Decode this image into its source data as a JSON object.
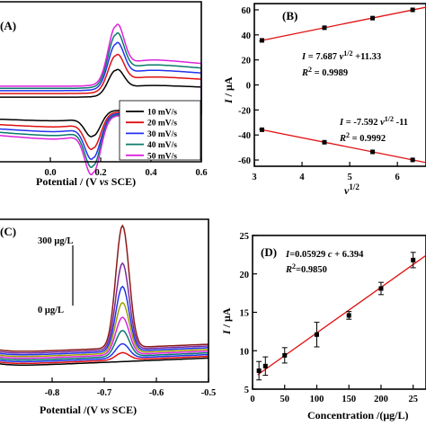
{
  "chart_data": [
    {
      "panel": "(A)",
      "type": "line",
      "xlabel": "Potential / (V vs SCE)",
      "xticks": [
        "0.0",
        "0.2",
        "0.4",
        "0.6"
      ],
      "xlim": [
        -0.2,
        0.6
      ],
      "legend": {
        "placement": "bottom-right"
      },
      "series": [
        {
          "name": "10 mV/s",
          "color": "#000000",
          "peak": 0.8
        },
        {
          "name": "20 mV/s",
          "color": "#e01010",
          "peak": 1.13
        },
        {
          "name": "30 mV/s",
          "color": "#2233ee",
          "peak": 1.39
        },
        {
          "name": "40 mV/s",
          "color": "#0a7a6a",
          "peak": 1.6
        },
        {
          "name": "50 mV/s",
          "color": "#dd22dd",
          "peak": 1.79
        }
      ],
      "anodic_peak_potential": 0.26,
      "cathodic_peak_potential": 0.17
    },
    {
      "panel": "(B)",
      "type": "scatter",
      "xlabel": "v1/2",
      "ylabel": "I / μA",
      "xlim": [
        3.0,
        6.6
      ],
      "ylim": [
        -65,
        65
      ],
      "xticks": [
        "3",
        "4",
        "5",
        "6"
      ],
      "yticks": [
        "60",
        "40",
        "20",
        "0",
        "-20",
        "-40",
        "-60"
      ],
      "series": [
        {
          "x": [
            3.16,
            4.47,
            5.48,
            6.32
          ],
          "y": [
            35.6,
            45.7,
            53.4,
            60.0
          ],
          "color": "#000000",
          "fit_color": "#e01010"
        },
        {
          "x": [
            3.16,
            4.47,
            5.48,
            6.32
          ],
          "y": [
            -35.8,
            -45.8,
            -53.5,
            -59.9
          ],
          "color": "#000000",
          "fit_color": "#e01010"
        }
      ],
      "eq_top": {
        "line1": "I = 7.687 v1/2 +11.33",
        "line2": "R2 = 0.9989"
      },
      "eq_bottom": {
        "line1": "I = -7.592 v1/2 -11",
        "line2": "R2 = 0.9992"
      }
    },
    {
      "panel": "(C)",
      "type": "line",
      "xlabel": "Potential /(V vs SCE)",
      "xticks": [
        "-0.8",
        "-0.7",
        "-0.6",
        "-0.5"
      ],
      "xlim": [
        -0.9,
        -0.5
      ],
      "peak_potential": -0.665,
      "label_top": "300 μg/L",
      "label_bottom": "0 μg/L",
      "series": [
        {
          "color": "#000000",
          "peak": 0.0
        },
        {
          "color": "#e01010",
          "peak": 0.05
        },
        {
          "color": "#2233ee",
          "peak": 0.1
        },
        {
          "color": "#0a7a6a",
          "peak": 0.18
        },
        {
          "color": "#dd22dd",
          "peak": 0.26
        },
        {
          "color": "#a0a000",
          "peak": 0.35
        },
        {
          "color": "#2233ee",
          "peak": 0.45
        },
        {
          "color": "#7a2a9a",
          "peak": 0.6
        },
        {
          "color": "#8b1a1a",
          "peak": 0.85
        }
      ]
    },
    {
      "panel": "(D)",
      "type": "scatter",
      "xlabel": "Concentration /(μg/L)",
      "ylabel": "I / μA",
      "xlim": [
        0,
        270
      ],
      "ylim": [
        5,
        25
      ],
      "xticks": [
        "0",
        "50",
        "100",
        "150",
        "200",
        "25"
      ],
      "yticks": [
        "25",
        "20",
        "15",
        "10",
        "5"
      ],
      "x": [
        10,
        20,
        50,
        100,
        150,
        200,
        250
      ],
      "y": [
        7.4,
        8.0,
        9.4,
        12.1,
        14.6,
        18.1,
        21.8
      ],
      "err": [
        1.2,
        1.2,
        1.0,
        1.6,
        0.5,
        0.8,
        1.0
      ],
      "fit": {
        "slope": 0.05929,
        "intercept": 6.394,
        "color": "#e01010"
      },
      "eq": {
        "line1": "I=0.05929 c + 6.394",
        "line2": "R2=0.9850"
      }
    }
  ],
  "labels": {
    "A": "(A)",
    "B": "(B)",
    "C": "(C)",
    "D": "(D)",
    "a_xlabel": "Potential / (V vs SCE)",
    "b_xlabel": "v",
    "b_xlabel_sup": "1/2",
    "b_ylabel": "I / μA",
    "c_xlabel": "Potential /(V vs SCE)",
    "d_xlabel": "Concentration /(μg/L)",
    "d_ylabel": "I / μA",
    "c_top": "300 μg/L",
    "c_bottom": "0 μg/L",
    "b_eq1_I": "I",
    "b_eq1_rest": " = 7.687 ",
    "b_eq1_v": "v",
    "b_eq1_sup": "1/2",
    "b_eq1_tail": " +11.33",
    "b_eq1_R": "R",
    "b_eq1_R_sup": "2",
    "b_eq1_R_tail": " = 0.9989",
    "b_eq2_rest": " = -7.592 ",
    "b_eq2_tail": " -11",
    "b_eq2_R_tail": " = 0.9992",
    "d_eq_I": "I",
    "d_eq_rest": "=0.05929 ",
    "d_eq_c": "c",
    "d_eq_tail": " + 6.394",
    "d_eq_R_tail": "=0.9850"
  }
}
